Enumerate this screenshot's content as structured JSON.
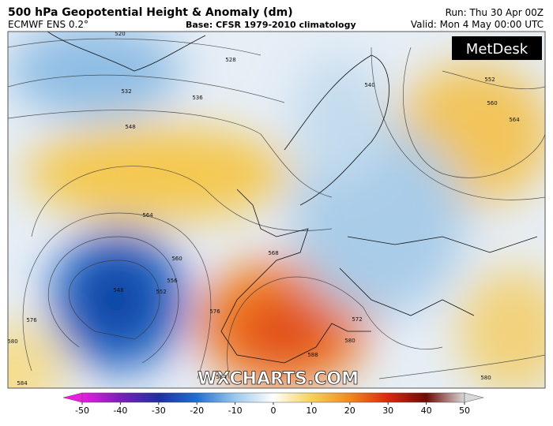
{
  "header": {
    "title": "500 hPa Geopotential Height & Anomaly (dm)",
    "model": "ECMWF ENS 0.2°",
    "base": "Base: CFSR 1979-2010 climatology",
    "run": "Run: Thu 30 Apr 00Z",
    "valid": "Valid: Mon 4 May 00:00 UTC"
  },
  "map": {
    "logo": "MetDesk",
    "watermark": "WXCHARTS.COM",
    "contour_labels": [
      520,
      528,
      532,
      536,
      548,
      564,
      560,
      556,
      552,
      548,
      576,
      580,
      584,
      568,
      572,
      588,
      584,
      580,
      540,
      552,
      560,
      564,
      576,
      580
    ]
  },
  "colorbar": {
    "lim": [
      -50,
      50
    ],
    "ticks": [
      -50,
      -40,
      -30,
      -20,
      -10,
      0,
      10,
      20,
      30,
      40,
      50
    ]
  }
}
